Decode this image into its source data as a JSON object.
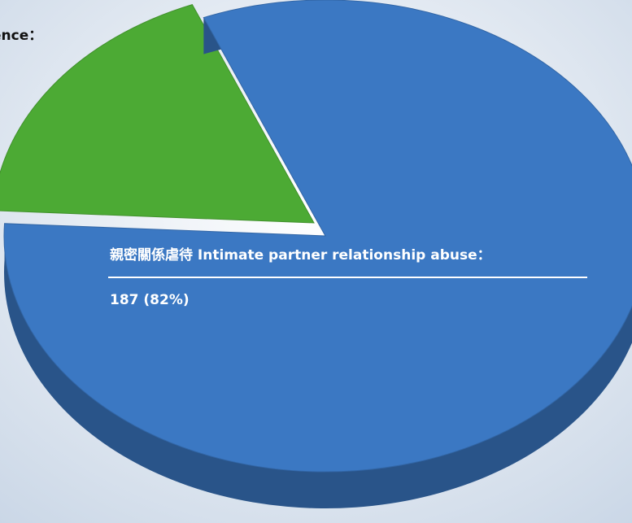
{
  "chart_data": {
    "type": "pie",
    "categories": [
      "ence：",
      "親密關係虐待 Intimate partner relationship abuse："
    ],
    "values": [
      41,
      187
    ],
    "value_labels": [
      null,
      "187 (82%)"
    ],
    "colors": [
      "#4caa34",
      "#3b78c3"
    ]
  }
}
